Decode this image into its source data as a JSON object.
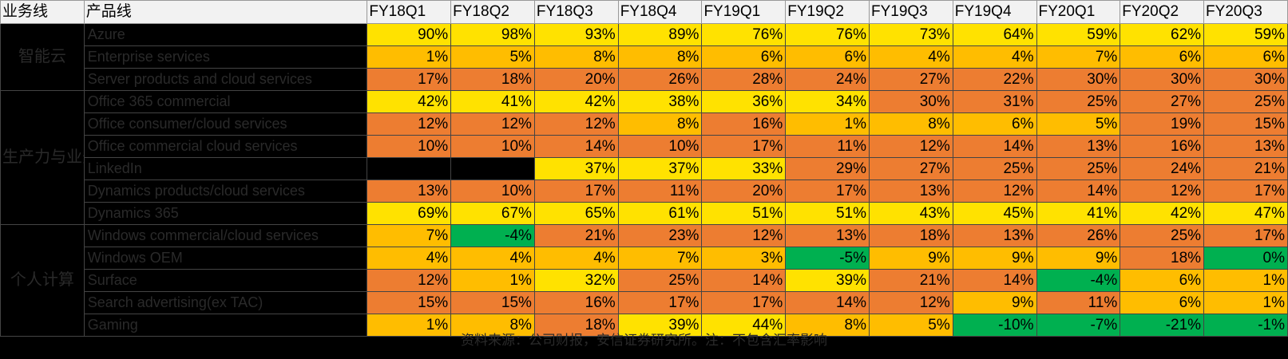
{
  "chart_data": {
    "type": "table",
    "header": {
      "business_line": "业务线",
      "product_line": "产品线"
    },
    "quarters": [
      "FY18Q1",
      "FY18Q2",
      "FY18Q3",
      "FY18Q4",
      "FY19Q1",
      "FY19Q2",
      "FY19Q3",
      "FY19Q4",
      "FY20Q1",
      "FY20Q2",
      "FY20Q3"
    ],
    "groups": [
      {
        "name": "智能云",
        "rows": 3
      },
      {
        "name": "生产力与业务流程",
        "rows": 6
      },
      {
        "name": "个人计算",
        "rows": 5
      }
    ],
    "rows": [
      {
        "product": "Azure",
        "values": [
          "90%",
          "98%",
          "93%",
          "89%",
          "76%",
          "76%",
          "73%",
          "64%",
          "59%",
          "62%",
          "59%"
        ]
      },
      {
        "product": "Enterprise services",
        "values": [
          "1%",
          "5%",
          "8%",
          "8%",
          "6%",
          "6%",
          "4%",
          "4%",
          "7%",
          "6%",
          "6%"
        ]
      },
      {
        "product": "Server products and cloud services",
        "values": [
          "17%",
          "18%",
          "20%",
          "26%",
          "28%",
          "24%",
          "27%",
          "22%",
          "30%",
          "30%",
          "30%"
        ]
      },
      {
        "product": "Office 365 commercial",
        "values": [
          "42%",
          "41%",
          "42%",
          "38%",
          "36%",
          "34%",
          "30%",
          "31%",
          "25%",
          "27%",
          "25%"
        ]
      },
      {
        "product": "Office consumer/cloud services",
        "values": [
          "12%",
          "12%",
          "12%",
          "8%",
          "16%",
          "1%",
          "8%",
          "6%",
          "5%",
          "19%",
          "15%"
        ]
      },
      {
        "product": "Office commercial cloud services",
        "values": [
          "10%",
          "10%",
          "14%",
          "10%",
          "17%",
          "11%",
          "12%",
          "14%",
          "13%",
          "16%",
          "13%"
        ]
      },
      {
        "product": "LinkedIn",
        "values": [
          "",
          "",
          "37%",
          "37%",
          "33%",
          "29%",
          "27%",
          "25%",
          "25%",
          "24%",
          "21%"
        ]
      },
      {
        "product": "Dynamics products/cloud services",
        "values": [
          "13%",
          "10%",
          "17%",
          "11%",
          "20%",
          "17%",
          "13%",
          "12%",
          "14%",
          "12%",
          "17%"
        ]
      },
      {
        "product": "Dynamics 365",
        "values": [
          "69%",
          "67%",
          "65%",
          "61%",
          "51%",
          "51%",
          "43%",
          "45%",
          "41%",
          "42%",
          "47%"
        ]
      },
      {
        "product": "Windows commercial/cloud services",
        "values": [
          "7%",
          "-4%",
          "21%",
          "23%",
          "12%",
          "13%",
          "18%",
          "13%",
          "26%",
          "25%",
          "17%"
        ]
      },
      {
        "product": "Windows OEM",
        "values": [
          "4%",
          "4%",
          "4%",
          "7%",
          "3%",
          "-5%",
          "9%",
          "9%",
          "9%",
          "18%",
          "0%"
        ]
      },
      {
        "product": "Surface",
        "values": [
          "12%",
          "1%",
          "32%",
          "25%",
          "14%",
          "39%",
          "21%",
          "14%",
          "-4%",
          "6%",
          "1%"
        ]
      },
      {
        "product": "Search advertising(ex TAC)",
        "values": [
          "15%",
          "15%",
          "16%",
          "17%",
          "17%",
          "14%",
          "12%",
          "9%",
          "11%",
          "6%",
          "1%"
        ]
      },
      {
        "product": "Gaming",
        "values": [
          "1%",
          "8%",
          "18%",
          "39%",
          "44%",
          "8%",
          "5%",
          "-10%",
          "-7%",
          "-21%",
          "-1%"
        ]
      }
    ],
    "cell_colors": [
      [
        "Y",
        "Y",
        "Y",
        "Y",
        "Y",
        "Y",
        "Y",
        "Y",
        "Y",
        "Y",
        "Y"
      ],
      [
        "A",
        "A",
        "A",
        "A",
        "A",
        "A",
        "A",
        "A",
        "A",
        "A",
        "A"
      ],
      [
        "O",
        "O",
        "O",
        "O",
        "O",
        "O",
        "O",
        "O",
        "O",
        "O",
        "O"
      ],
      [
        "Y",
        "Y",
        "Y",
        "Y",
        "Y",
        "Y",
        "O",
        "O",
        "O",
        "O",
        "O"
      ],
      [
        "O",
        "O",
        "O",
        "A",
        "O",
        "A",
        "A",
        "A",
        "A",
        "O",
        "O"
      ],
      [
        "O",
        "O",
        "O",
        "O",
        "O",
        "O",
        "O",
        "O",
        "O",
        "O",
        "O"
      ],
      [
        "-",
        "-",
        "Y",
        "Y",
        "Y",
        "O",
        "O",
        "O",
        "O",
        "O",
        "O"
      ],
      [
        "O",
        "O",
        "O",
        "O",
        "O",
        "O",
        "O",
        "O",
        "O",
        "O",
        "O"
      ],
      [
        "Y",
        "Y",
        "Y",
        "Y",
        "Y",
        "Y",
        "Y",
        "Y",
        "Y",
        "Y",
        "Y"
      ],
      [
        "A",
        "G",
        "O",
        "O",
        "O",
        "O",
        "O",
        "O",
        "O",
        "O",
        "O"
      ],
      [
        "A",
        "A",
        "A",
        "A",
        "A",
        "G",
        "A",
        "A",
        "A",
        "O",
        "G"
      ],
      [
        "O",
        "A",
        "Y",
        "O",
        "O",
        "Y",
        "O",
        "O",
        "G",
        "A",
        "A"
      ],
      [
        "O",
        "O",
        "O",
        "O",
        "O",
        "O",
        "O",
        "A",
        "O",
        "A",
        "A"
      ],
      [
        "A",
        "A",
        "O",
        "Y",
        "Y",
        "A",
        "A",
        "G",
        "G",
        "G",
        "G"
      ]
    ],
    "color_map": {
      "Y": "#ffe200",
      "A": "#ffbd00",
      "O": "#ed7d31",
      "G": "#00b050",
      "-": "#000000"
    },
    "footnote": "资料来源：公司财报，安信证券研究所。注：不包含汇率影响"
  }
}
